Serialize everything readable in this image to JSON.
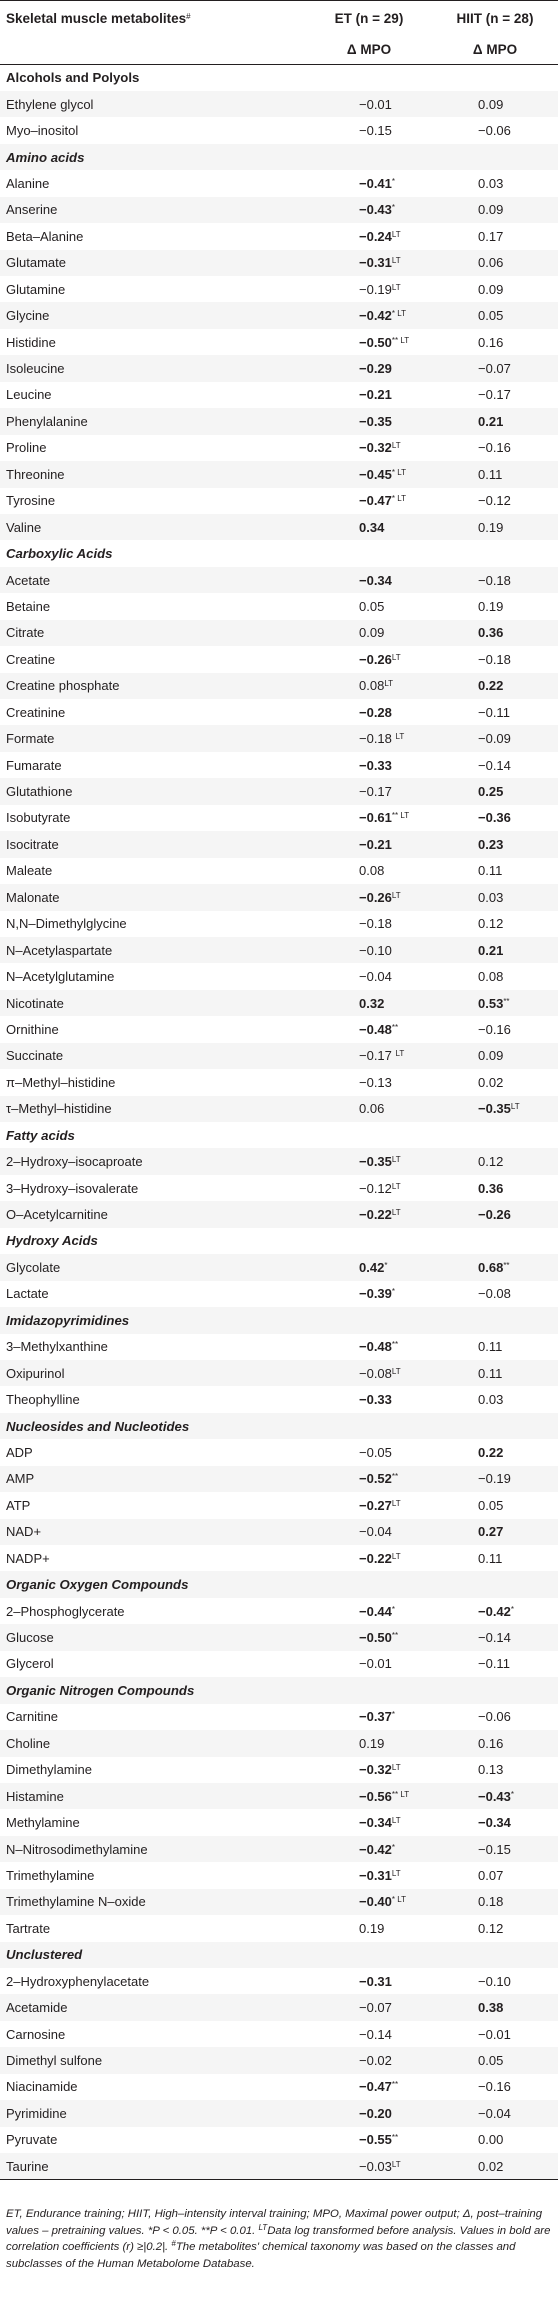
{
  "header": {
    "col1": "Skeletal muscle metabolites",
    "col1_sup": "#",
    "col2": "ET (n = 29)",
    "col3": "HIIT (n = 28)",
    "sub2": "Δ MPO",
    "sub3": "Δ MPO"
  },
  "rows": [
    {
      "t": "s",
      "n": "Alcohols and Polyols",
      "i": false
    },
    {
      "n": "Ethylene glycol",
      "a": "−0.01",
      "b": "0.09"
    },
    {
      "n": "Myo–inositol",
      "a": "−0.15",
      "b": "−0.06"
    },
    {
      "t": "s",
      "n": "Amino acids",
      "i": true
    },
    {
      "n": "Alanine",
      "a": "−0.41",
      "as": "*",
      "ab": true,
      "b": "0.03"
    },
    {
      "n": "Anserine",
      "a": "−0.43",
      "as": "*",
      "ab": true,
      "b": "0.09"
    },
    {
      "n": "Beta–Alanine",
      "a": "−0.24",
      "as": "LT",
      "ab": true,
      "b": "0.17"
    },
    {
      "n": "Glutamate",
      "a": "−0.31",
      "as": "LT",
      "ab": true,
      "b": "0.06"
    },
    {
      "n": "Glutamine",
      "a": "−0.19",
      "as": "LT",
      "b": "0.09"
    },
    {
      "n": "Glycine",
      "a": "−0.42",
      "as": "* LT",
      "ab": true,
      "b": "0.05"
    },
    {
      "n": "Histidine",
      "a": "−0.50",
      "as": "** LT",
      "ab": true,
      "b": "0.16"
    },
    {
      "n": "Isoleucine",
      "a": "−0.29",
      "ab": true,
      "b": "−0.07"
    },
    {
      "n": "Leucine",
      "a": "−0.21",
      "ab": true,
      "b": "−0.17"
    },
    {
      "n": "Phenylalanine",
      "a": "−0.35",
      "ab": true,
      "b": "0.21",
      "bb": true
    },
    {
      "n": "Proline",
      "a": "−0.32",
      "as": "LT",
      "ab": true,
      "b": "−0.16"
    },
    {
      "n": "Threonine",
      "a": "−0.45",
      "as": "* LT",
      "ab": true,
      "b": "0.11"
    },
    {
      "n": "Tyrosine",
      "a": "−0.47",
      "as": "* LT",
      "ab": true,
      "b": "−0.12"
    },
    {
      "n": "Valine",
      "a": "0.34",
      "ab": true,
      "b": "0.19"
    },
    {
      "t": "s",
      "n": "Carboxylic Acids",
      "i": true
    },
    {
      "n": "Acetate",
      "a": "−0.34",
      "ab": true,
      "b": "−0.18"
    },
    {
      "n": "Betaine",
      "a": "0.05",
      "b": "0.19"
    },
    {
      "n": "Citrate",
      "a": "0.09",
      "b": "0.36",
      "bb": true
    },
    {
      "n": "Creatine",
      "a": "−0.26",
      "as": "LT",
      "ab": true,
      "b": "−0.18"
    },
    {
      "n": "Creatine phosphate",
      "a": "0.08",
      "as": "LT",
      "b": "0.22",
      "bb": true
    },
    {
      "n": "Creatinine",
      "a": "−0.28",
      "ab": true,
      "b": "−0.11"
    },
    {
      "n": "Formate",
      "a": "−0.18 ",
      "as": "LT",
      "b": "−0.09"
    },
    {
      "n": "Fumarate",
      "a": "−0.33",
      "ab": true,
      "b": "−0.14"
    },
    {
      "n": "Glutathione",
      "a": "−0.17",
      "b": "0.25",
      "bb": true
    },
    {
      "n": "Isobutyrate",
      "a": "−0.61",
      "as": "** LT",
      "ab": true,
      "b": "−0.36",
      "bb": true
    },
    {
      "n": "Isocitrate",
      "a": "−0.21",
      "ab": true,
      "b": "0.23",
      "bb": true
    },
    {
      "n": "Maleate",
      "a": "0.08",
      "b": "0.11"
    },
    {
      "n": "Malonate",
      "a": "−0.26",
      "as": "LT",
      "ab": true,
      "b": "0.03"
    },
    {
      "n": "N,N–Dimethylglycine",
      "a": "−0.18",
      "b": "0.12"
    },
    {
      "n": "N–Acetylaspartate",
      "a": "−0.10",
      "b": "0.21",
      "bb": true
    },
    {
      "n": "N–Acetylglutamine",
      "a": "−0.04",
      "b": "0.08"
    },
    {
      "n": "Nicotinate",
      "a": "0.32",
      "ab": true,
      "b": "0.53",
      "bs": "**",
      "bb": true
    },
    {
      "n": "Ornithine",
      "a": "−0.48",
      "as": "**",
      "ab": true,
      "b": "−0.16"
    },
    {
      "n": "Succinate",
      "a": "−0.17 ",
      "as": "LT",
      "b": "0.09"
    },
    {
      "n": "π–Methyl–histidine",
      "a": "−0.13",
      "b": "0.02"
    },
    {
      "n": "τ–Methyl–histidine",
      "a": "0.06",
      "b": "−0.35",
      "bs": "LT",
      "bb": true
    },
    {
      "t": "s",
      "n": "Fatty acids",
      "i": true
    },
    {
      "n": "2–Hydroxy–isocaproate",
      "a": "−0.35",
      "as": "LT",
      "ab": true,
      "b": "0.12"
    },
    {
      "n": "3–Hydroxy–isovalerate",
      "a": "−0.12",
      "as": "LT",
      "b": "0.36",
      "bb": true
    },
    {
      "n": "O–Acetylcarnitine",
      "a": "−0.22",
      "as": "LT",
      "ab": true,
      "b": "−0.26",
      "bb": true
    },
    {
      "t": "s",
      "n": "Hydroxy Acids",
      "i": true
    },
    {
      "n": "Glycolate",
      "a": "0.42",
      "as": "*",
      "ab": true,
      "b": "0.68",
      "bs": "**",
      "bb": true
    },
    {
      "n": "Lactate",
      "a": "−0.39",
      "as": "*",
      "ab": true,
      "b": "−0.08"
    },
    {
      "t": "s",
      "n": "Imidazopyrimidines",
      "i": true
    },
    {
      "n": "3–Methylxanthine",
      "a": "−0.48",
      "as": "**",
      "ab": true,
      "b": "0.11"
    },
    {
      "n": "Oxipurinol",
      "a": "−0.08",
      "as": "LT",
      "b": "0.11"
    },
    {
      "n": "Theophylline",
      "a": "−0.33",
      "ab": true,
      "b": "0.03"
    },
    {
      "t": "s",
      "n": "Nucleosides and Nucleotides",
      "i": true
    },
    {
      "n": "ADP",
      "a": "−0.05",
      "b": "0.22",
      "bb": true
    },
    {
      "n": "AMP",
      "a": "−0.52",
      "as": "**",
      "ab": true,
      "b": "−0.19"
    },
    {
      "n": "ATP",
      "a": "−0.27",
      "as": "LT",
      "ab": true,
      "b": "0.05"
    },
    {
      "n": "NAD+",
      "a": "−0.04",
      "b": "0.27",
      "bb": true
    },
    {
      "n": "NADP+",
      "a": "−0.22",
      "as": "LT",
      "ab": true,
      "b": "0.11"
    },
    {
      "t": "s",
      "n": "Organic Oxygen Compounds",
      "i": true
    },
    {
      "n": "2–Phosphoglycerate",
      "a": "−0.44",
      "as": "*",
      "ab": true,
      "b": "−0.42",
      "bs": "*",
      "bb": true
    },
    {
      "n": "Glucose",
      "a": "−0.50",
      "as": "**",
      "ab": true,
      "b": "−0.14"
    },
    {
      "n": "Glycerol",
      "a": "−0.01",
      "b": "−0.11"
    },
    {
      "t": "s",
      "n": "Organic Nitrogen Compounds",
      "i": true
    },
    {
      "n": "Carnitine",
      "a": "−0.37",
      "as": "*",
      "ab": true,
      "b": "−0.06"
    },
    {
      "n": "Choline",
      "a": "0.19",
      "b": "0.16"
    },
    {
      "n": "Dimethylamine",
      "a": "−0.32",
      "as": "LT",
      "ab": true,
      "b": "0.13"
    },
    {
      "n": "Histamine",
      "a": "−0.56",
      "as": "** LT",
      "ab": true,
      "b": "−0.43",
      "bs": "*",
      "bb": true
    },
    {
      "n": "Methylamine",
      "a": "−0.34",
      "as": "LT",
      "ab": true,
      "b": "−0.34",
      "bb": true
    },
    {
      "n": "N–Nitrosodimethylamine",
      "a": "−0.42",
      "as": "*",
      "ab": true,
      "b": "−0.15"
    },
    {
      "n": "Trimethylamine",
      "a": "−0.31",
      "as": "LT",
      "ab": true,
      "b": "0.07"
    },
    {
      "n": "Trimethylamine N–oxide",
      "a": "−0.40",
      "as": "* LT",
      "ab": true,
      "b": "0.18"
    },
    {
      "n": "Tartrate",
      "a": "0.19",
      "b": "0.12"
    },
    {
      "t": "s",
      "n": "Unclustered",
      "i": true
    },
    {
      "n": "2–Hydroxyphenylacetate",
      "a": "−0.31",
      "ab": true,
      "b": "−0.10"
    },
    {
      "n": "Acetamide",
      "a": "−0.07",
      "b": "0.38",
      "bb": true
    },
    {
      "n": "Carnosine",
      "a": "−0.14",
      "b": "−0.01"
    },
    {
      "n": "Dimethyl sulfone",
      "a": "−0.02",
      "b": "0.05"
    },
    {
      "n": "Niacinamide",
      "a": "−0.47",
      "as": "**",
      "ab": true,
      "b": "−0.16"
    },
    {
      "n": "Pyrimidine",
      "a": "−0.20",
      "ab": true,
      "b": "−0.04"
    },
    {
      "n": "Pyruvate",
      "a": "−0.55",
      "as": "**",
      "ab": true,
      "b": "0.00"
    },
    {
      "n": "Taurine",
      "a": "−0.03",
      "as": "LT",
      "b": "0.02"
    }
  ],
  "footnote": "ET, Endurance training; HIIT, High–intensity interval training; MPO, Maximal power output; Δ, post–training values – pretraining values. *P < 0.05. **P < 0.01. LT Data log transformed before analysis. Values in bold are correlation coefficients (r) ≥|0.2|. # The metabolites' chemical taxonomy was based on the classes and subclasses of the Human Metabolome Database."
}
